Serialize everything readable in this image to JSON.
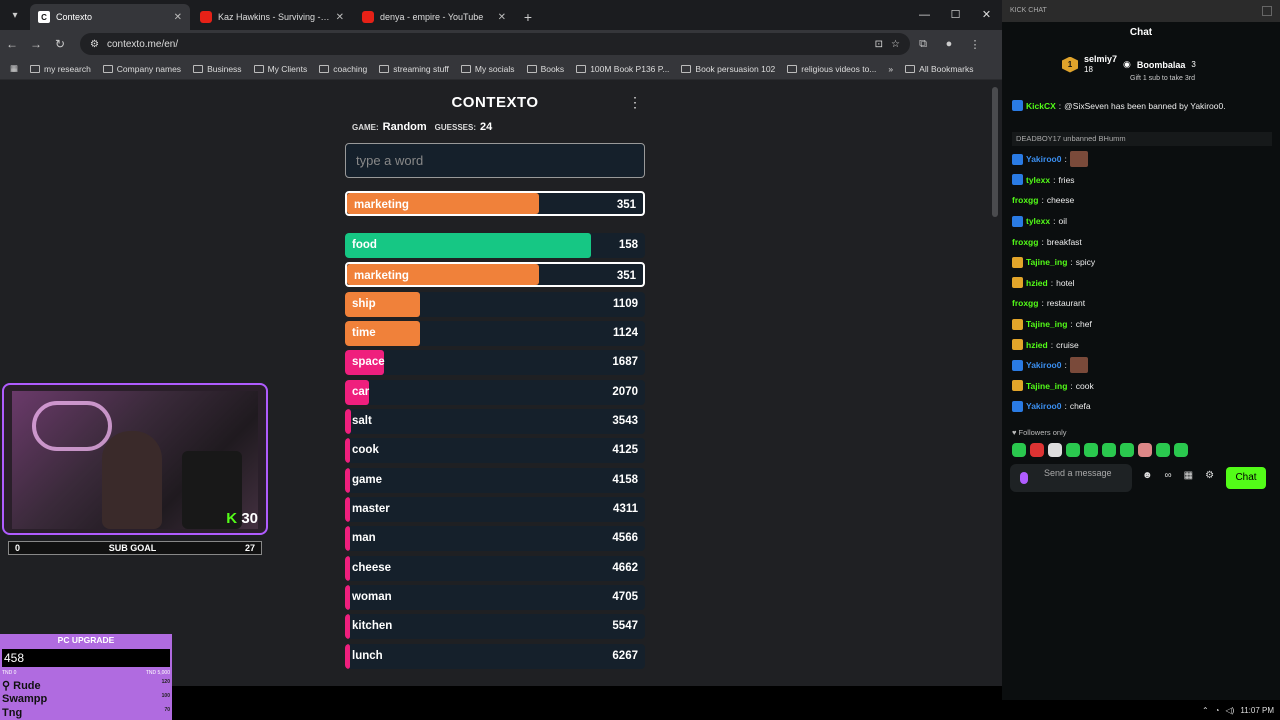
{
  "browser": {
    "tabs": [
      {
        "label": "Contexto",
        "active": true,
        "favicon": "contexto"
      },
      {
        "label": "Kaz Hawkins - Surviving - YouTube",
        "active": false,
        "favicon": "youtube"
      },
      {
        "label": "denya - empire - YouTube",
        "active": false,
        "favicon": "youtube"
      }
    ],
    "url": "contexto.me/en/",
    "bookmarks": [
      "my research",
      "Company names",
      "Business",
      "My Clients",
      "coaching",
      "streaming stuff",
      "My socials",
      "Books",
      "100M Book P136 P...",
      "Book persuasion 102",
      "religious videos to..."
    ],
    "all_bookmarks": "All Bookmarks"
  },
  "contexto": {
    "title": "CONTEXTO",
    "game_label": "GAME:",
    "game_value": "Random",
    "guesses_label": "GUESSES:",
    "guesses_value": "24",
    "input_placeholder": "type a word",
    "last_guess": {
      "word": "marketing",
      "rank": 351,
      "color": "#f0813a"
    },
    "guesses": [
      {
        "word": "food",
        "rank": 158,
        "color": "#16c784",
        "fill": 0.82
      },
      {
        "word": "marketing",
        "rank": 351,
        "color": "#f0813a",
        "fill": 0.65,
        "highlight": true
      },
      {
        "word": "ship",
        "rank": 1109,
        "color": "#f0813a",
        "fill": 0.25
      },
      {
        "word": "time",
        "rank": 1124,
        "color": "#f0813a",
        "fill": 0.25
      },
      {
        "word": "space",
        "rank": 1687,
        "color": "#ef1f7d",
        "fill": 0.13
      },
      {
        "word": "car",
        "rank": 2070,
        "color": "#ef1f7d",
        "fill": 0.08
      },
      {
        "word": "salt",
        "rank": 3543,
        "color": "#ef1f7d",
        "fill": 0.02
      },
      {
        "word": "cook",
        "rank": 4125,
        "color": "#ef1f7d",
        "fill": 0.01
      },
      {
        "word": "game",
        "rank": 4158,
        "color": "#ef1f7d",
        "fill": 0.01
      },
      {
        "word": "master",
        "rank": 4311,
        "color": "#ef1f7d",
        "fill": 0.01
      },
      {
        "word": "man",
        "rank": 4566,
        "color": "#ef1f7d",
        "fill": 0.01
      },
      {
        "word": "cheese",
        "rank": 4662,
        "color": "#ef1f7d",
        "fill": 0.01
      },
      {
        "word": "woman",
        "rank": 4705,
        "color": "#ef1f7d",
        "fill": 0.01
      },
      {
        "word": "kitchen",
        "rank": 5547,
        "color": "#ef1f7d",
        "fill": 0.01
      },
      {
        "word": "lunch",
        "rank": 6267,
        "color": "#ef1f7d",
        "fill": 0.01
      }
    ]
  },
  "overlay": {
    "kick_count": "30",
    "sub_goal_label": "SUB GOAL",
    "sub_goal_current": "0",
    "sub_goal_target": "27",
    "pc_upgrade_title": "PC UPGRADE",
    "pc_upgrade_value": "458",
    "pc_scale_min": "TND 0",
    "pc_scale_max": "TND 5,000",
    "leaderboard": [
      {
        "name": "Rude",
        "amount": "120"
      },
      {
        "name": "Swampp",
        "amount": "100"
      },
      {
        "name": "Tng",
        "amount": "70"
      }
    ]
  },
  "chat": {
    "header": "KICK CHAT",
    "title": "Chat",
    "top_gifter": {
      "name": "selmiy7",
      "count": "18",
      "rank": "1"
    },
    "second": {
      "name": "Boombalaa",
      "count": "3"
    },
    "gift_cta": "Gift 1 sub to take 3rd",
    "system_message": "DEADBOY17 unbanned BHumm",
    "messages": [
      {
        "user": "KickCX",
        "text": "@SixSeven has been banned by Yakiroo0.",
        "color": "#53fc18",
        "badge": "mod"
      },
      {
        "user": "Yakiroo0",
        "text": "",
        "color": "#3b8ff0",
        "badge": "mod",
        "emote": true
      },
      {
        "user": "tylexx",
        "text": "fries",
        "color": "#53fc18",
        "badge": "mod"
      },
      {
        "user": "froxgg",
        "text": "cheese",
        "color": "#53fc18",
        "badge": ""
      },
      {
        "user": "tylexx",
        "text": "oil",
        "color": "#53fc18",
        "badge": "mod"
      },
      {
        "user": "froxgg",
        "text": "breakfast",
        "color": "#53fc18",
        "badge": ""
      },
      {
        "user": "Tajine_ing",
        "text": "spicy",
        "color": "#53fc18",
        "badge": "sub"
      },
      {
        "user": "hzied",
        "text": "hotel",
        "color": "#53fc18",
        "badge": "sub"
      },
      {
        "user": "froxgg",
        "text": "restaurant",
        "color": "#53fc18",
        "badge": ""
      },
      {
        "user": "Tajine_ing",
        "text": "chef",
        "color": "#53fc18",
        "badge": "sub"
      },
      {
        "user": "hzied",
        "text": "cruise",
        "color": "#53fc18",
        "badge": "sub"
      },
      {
        "user": "Yakiroo0",
        "text": "",
        "color": "#3b8ff0",
        "badge": "mod",
        "emote": true
      },
      {
        "user": "Tajine_ing",
        "text": "cook",
        "color": "#53fc18",
        "badge": "sub"
      },
      {
        "user": "Yakiroo0",
        "text": "chefa",
        "color": "#3b8ff0",
        "badge": "mod"
      }
    ],
    "followers_only": "Followers only",
    "input_placeholder": "Send a message",
    "send_label": "Chat"
  },
  "taskbar": {
    "time": "11:07 PM"
  }
}
